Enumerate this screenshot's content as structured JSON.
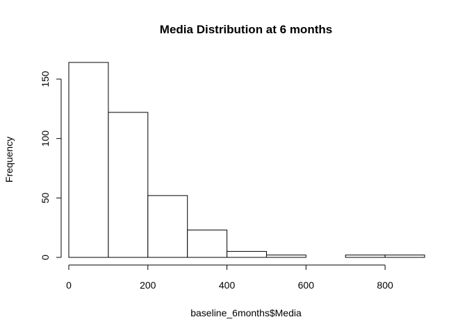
{
  "chart_data": {
    "type": "bar",
    "subtype": "histogram",
    "title": "Media Distribution at 6 months",
    "xlabel": "baseline_6months$Media",
    "ylabel": "Frequency",
    "bin_edges": [
      0,
      100,
      200,
      300,
      400,
      500,
      600,
      700,
      800,
      900
    ],
    "values": [
      164,
      122,
      52,
      23,
      5,
      2,
      0,
      2,
      2
    ],
    "xlim": [
      0,
      900
    ],
    "ylim": [
      0,
      164
    ],
    "x_ticks": [
      0,
      200,
      400,
      600,
      800
    ],
    "x_tick_labels": [
      "0",
      "200",
      "400",
      "600",
      "800"
    ],
    "y_ticks": [
      0,
      50,
      100,
      150
    ],
    "y_tick_labels": [
      "0",
      "50",
      "100",
      "150"
    ],
    "grid": false,
    "legend": "none",
    "bar_fill": "#ffffff",
    "bar_stroke": "#000000"
  }
}
